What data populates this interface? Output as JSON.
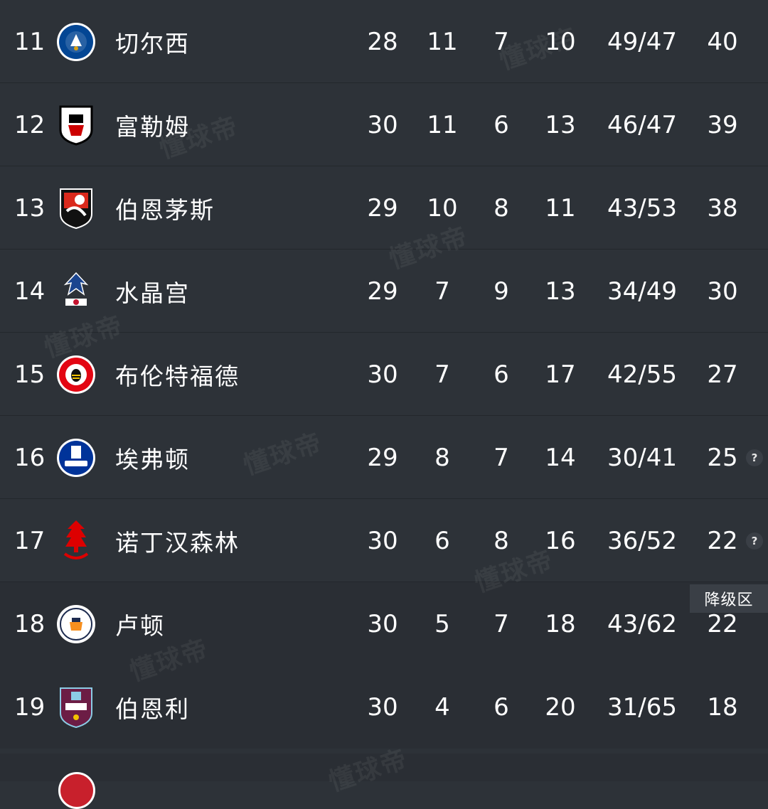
{
  "rows": [
    {
      "rank": "11",
      "team": "切尔西",
      "played": "28",
      "won": "11",
      "drawn": "7",
      "lost": "10",
      "goals": "49/47",
      "points": "40",
      "crest_icon": "chelsea-crest-icon",
      "crest_color": "#034694"
    },
    {
      "rank": "12",
      "team": "富勒姆",
      "played": "30",
      "won": "11",
      "drawn": "6",
      "lost": "13",
      "goals": "46/47",
      "points": "39",
      "crest_icon": "fulham-crest-icon",
      "crest_color": "#ffffff"
    },
    {
      "rank": "13",
      "team": "伯恩茅斯",
      "played": "29",
      "won": "10",
      "drawn": "8",
      "lost": "11",
      "goals": "43/53",
      "points": "38",
      "crest_icon": "bournemouth-crest-icon",
      "crest_color": "#da291c"
    },
    {
      "rank": "14",
      "team": "水晶宫",
      "played": "29",
      "won": "7",
      "drawn": "9",
      "lost": "13",
      "goals": "34/49",
      "points": "30",
      "crest_icon": "crystal-palace-crest-icon",
      "crest_color": "#1b458f"
    },
    {
      "rank": "15",
      "team": "布伦特福德",
      "played": "30",
      "won": "7",
      "drawn": "6",
      "lost": "17",
      "goals": "42/55",
      "points": "27",
      "crest_icon": "brentford-crest-icon",
      "crest_color": "#e30613"
    },
    {
      "rank": "16",
      "team": "埃弗顿",
      "played": "29",
      "won": "8",
      "drawn": "7",
      "lost": "14",
      "goals": "30/41",
      "points": "25",
      "crest_icon": "everton-crest-icon",
      "crest_color": "#003399",
      "note": "?"
    },
    {
      "rank": "17",
      "team": "诺丁汉森林",
      "played": "30",
      "won": "6",
      "drawn": "8",
      "lost": "16",
      "goals": "36/52",
      "points": "22",
      "crest_icon": "nottingham-forest-crest-icon",
      "crest_color": "#dd0000",
      "note": "?"
    },
    {
      "rank": "18",
      "team": "卢顿",
      "played": "30",
      "won": "5",
      "drawn": "7",
      "lost": "18",
      "goals": "43/62",
      "points": "22",
      "crest_icon": "luton-crest-icon",
      "crest_color": "#f78f1e"
    },
    {
      "rank": "19",
      "team": "伯恩利",
      "played": "30",
      "won": "4",
      "drawn": "6",
      "lost": "20",
      "goals": "31/65",
      "points": "18",
      "crest_icon": "burnley-crest-icon",
      "crest_color": "#6c1d45"
    }
  ],
  "relegation_label": "降级区",
  "watermark_text": "懂球帝",
  "colors": {
    "background": "#2d3238",
    "relegation_background": "#2a2e34",
    "divider": "#23272c",
    "text": "#ffffff"
  }
}
